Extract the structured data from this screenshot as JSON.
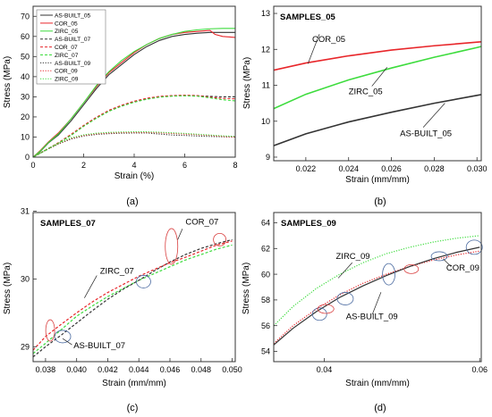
{
  "colors": {
    "as_built": "#333333",
    "cor": "#e8262a",
    "zirc": "#3ddc3d",
    "ellipse_black": "#4a6aa0",
    "ellipse_red": "#d94040"
  },
  "chart_data": [
    {
      "panel": "a",
      "type": "line",
      "caption": "(a)",
      "xlabel": "Strain (%)",
      "ylabel": "Stress (MPa)",
      "xlim": [
        0,
        8
      ],
      "ylim": [
        0,
        75
      ],
      "xticks": [
        0,
        2,
        4,
        6,
        8
      ],
      "yticks": [
        0,
        10,
        20,
        30,
        40,
        50,
        60,
        70
      ],
      "legend_position": "top-left",
      "series": [
        {
          "name": "AS-BUILT_05",
          "color": "#333333",
          "dash": "solid",
          "x": [
            0,
            0.3,
            0.6,
            1,
            1.5,
            2,
            2.5,
            3,
            3.5,
            4,
            4.5,
            5,
            5.5,
            6,
            6.5,
            7,
            7.5,
            8
          ],
          "y": [
            0,
            3,
            7,
            11,
            18,
            26,
            34,
            41,
            46,
            51,
            55,
            58,
            60,
            61,
            61.6,
            62,
            62,
            62
          ]
        },
        {
          "name": "COR_05",
          "color": "#e8262a",
          "dash": "solid",
          "x": [
            0,
            0.3,
            0.6,
            1,
            1.5,
            2,
            2.5,
            3,
            3.5,
            4,
            4.5,
            5,
            5.5,
            6,
            6.5,
            7,
            7.2,
            7.5,
            8
          ],
          "y": [
            0,
            3.5,
            7.5,
            12,
            19,
            27,
            35,
            42,
            47,
            52,
            56,
            59,
            61,
            62,
            62.5,
            63,
            61,
            60,
            59.5
          ]
        },
        {
          "name": "ZIRC_05",
          "color": "#3ddc3d",
          "dash": "solid",
          "x": [
            0,
            0.3,
            0.6,
            1,
            1.5,
            2,
            2.5,
            3,
            3.5,
            4,
            4.5,
            5,
            5.5,
            6,
            6.5,
            7,
            7.5,
            8
          ],
          "y": [
            0,
            3.2,
            7.2,
            11.5,
            19,
            27,
            35.5,
            42.5,
            48,
            52.5,
            56,
            59,
            61,
            62.5,
            63.3,
            63.8,
            64,
            64
          ]
        },
        {
          "name": "AS-BUILT_07",
          "color": "#333333",
          "dash": "dash",
          "x": [
            0,
            0.5,
            1,
            1.5,
            2,
            2.5,
            3,
            3.5,
            4,
            4.5,
            5,
            5.5,
            6,
            6.5,
            7,
            7.5,
            8
          ],
          "y": [
            0,
            3.5,
            7,
            11,
            15.5,
            19.5,
            23,
            25.5,
            27.5,
            29,
            30,
            30.4,
            30.6,
            30.5,
            30.2,
            30,
            30
          ]
        },
        {
          "name": "COR_07",
          "color": "#e8262a",
          "dash": "dash",
          "x": [
            0,
            0.5,
            1,
            1.5,
            2,
            2.5,
            3,
            3.5,
            4,
            4.5,
            5,
            5.5,
            6,
            6.5,
            7,
            7.5,
            8
          ],
          "y": [
            0,
            3.6,
            7.2,
            11.3,
            15.8,
            19.8,
            23.3,
            25.8,
            27.8,
            29.3,
            30.2,
            30.6,
            30.8,
            30.6,
            29.8,
            29.2,
            29
          ]
        },
        {
          "name": "ZIRC_07",
          "color": "#3ddc3d",
          "dash": "dash",
          "x": [
            0,
            0.5,
            1,
            1.5,
            2,
            2.5,
            3,
            3.5,
            4,
            4.5,
            5,
            5.5,
            6,
            6.5,
            7,
            7.5,
            8
          ],
          "y": [
            0,
            3.4,
            6.9,
            10.8,
            15.3,
            19.3,
            22.8,
            25.3,
            27.3,
            28.8,
            29.8,
            30.3,
            30.5,
            30.3,
            29.5,
            28.5,
            28
          ]
        },
        {
          "name": "AS-BUILT_09",
          "color": "#333333",
          "dash": "dot",
          "x": [
            0,
            0.5,
            1,
            1.5,
            2,
            2.5,
            3,
            3.5,
            4,
            4.5,
            5,
            5.5,
            6,
            6.5,
            7,
            7.5,
            8
          ],
          "y": [
            0,
            3.5,
            6.5,
            9,
            10.5,
            11.3,
            11.7,
            11.9,
            12,
            12,
            11.5,
            11,
            10.8,
            10.5,
            10.3,
            10.1,
            10
          ]
        },
        {
          "name": "COR_09",
          "color": "#e8262a",
          "dash": "dot",
          "x": [
            0,
            0.5,
            1,
            1.5,
            2,
            2.5,
            3,
            3.5,
            4,
            4.5,
            5,
            5.5,
            6,
            6.5,
            7,
            7.5,
            8
          ],
          "y": [
            0,
            3.6,
            6.7,
            9.3,
            10.8,
            11.6,
            12,
            12.2,
            12.3,
            12.3,
            12.1,
            11.8,
            11.5,
            11.2,
            10.8,
            10.3,
            10
          ]
        },
        {
          "name": "ZIRC_09",
          "color": "#3ddc3d",
          "dash": "dot",
          "x": [
            0,
            0.5,
            1,
            1.5,
            2,
            2.5,
            3,
            3.5,
            4,
            4.5,
            5,
            5.5,
            6,
            6.5,
            7,
            7.5,
            8
          ],
          "y": [
            0,
            3.7,
            6.9,
            9.6,
            11.1,
            11.9,
            12.3,
            12.5,
            12.6,
            12.6,
            12.4,
            12.1,
            11.8,
            11.4,
            11,
            10.6,
            10.3
          ]
        }
      ]
    },
    {
      "panel": "b",
      "type": "line",
      "title": "SAMPLES_05",
      "caption": "(b)",
      "xlabel": "Strain (mm/mm)",
      "ylabel": "Stress (MPa)",
      "xlim": [
        0.0205,
        0.0302
      ],
      "ylim": [
        8.9,
        13.2
      ],
      "xticks": [
        0.022,
        0.024,
        0.026,
        0.028,
        0.03
      ],
      "yticks": [
        9,
        10,
        11,
        12,
        13
      ],
      "series": [
        {
          "name": "COR_05",
          "color": "#e8262a",
          "dash": "solid",
          "x": [
            0.0205,
            0.022,
            0.024,
            0.026,
            0.028,
            0.03,
            0.0302
          ],
          "y": [
            11.42,
            11.62,
            11.82,
            11.98,
            12.1,
            12.2,
            12.21
          ]
        },
        {
          "name": "ZIRC_05",
          "color": "#3ddc3d",
          "dash": "solid",
          "x": [
            0.0205,
            0.022,
            0.024,
            0.026,
            0.028,
            0.03,
            0.0302
          ],
          "y": [
            10.35,
            10.75,
            11.15,
            11.48,
            11.78,
            12.05,
            12.08
          ]
        },
        {
          "name": "AS-BUILT_05",
          "color": "#333333",
          "dash": "solid",
          "x": [
            0.0205,
            0.022,
            0.024,
            0.026,
            0.028,
            0.03,
            0.0302
          ],
          "y": [
            9.32,
            9.65,
            9.98,
            10.25,
            10.5,
            10.72,
            10.74
          ]
        }
      ],
      "annotations": [
        {
          "text": "COR_05",
          "x": 0.0223,
          "y": 12.2,
          "ax": 0.0221,
          "ay": 11.6
        },
        {
          "text": "ZIRC_05",
          "x": 0.024,
          "y": 10.75,
          "ax": 0.0258,
          "ay": 11.5
        },
        {
          "text": "AS-BUILT_05",
          "x": 0.0264,
          "y": 9.58,
          "ax": 0.0285,
          "ay": 10.5
        }
      ]
    },
    {
      "panel": "c",
      "type": "line",
      "title": "SAMPLES_07",
      "caption": "(c)",
      "xlabel": "Strain (mm/mm)",
      "ylabel": "Stress (MPa)",
      "xlim": [
        0.0372,
        0.0502
      ],
      "ylim": [
        28.78,
        30.98
      ],
      "xticks": [
        0.038,
        0.04,
        0.042,
        0.044,
        0.046,
        0.048,
        0.05
      ],
      "yticks": [
        29,
        30,
        31
      ],
      "series": [
        {
          "name": "ZIRC_07",
          "color": "#3ddc3d",
          "dash": "dash",
          "x": [
            0.0372,
            0.038,
            0.039,
            0.04,
            0.041,
            0.042,
            0.043,
            0.044,
            0.045,
            0.046,
            0.047,
            0.048,
            0.049,
            0.05
          ],
          "y": [
            28.9,
            29.05,
            29.25,
            29.45,
            29.6,
            29.74,
            29.86,
            29.98,
            30.08,
            30.18,
            30.28,
            30.36,
            30.44,
            30.5
          ]
        },
        {
          "name": "AS-BUILT_07",
          "color": "#333333",
          "dash": "dash",
          "x": [
            0.0372,
            0.038,
            0.039,
            0.04,
            0.041,
            0.042,
            0.043,
            0.044,
            0.045,
            0.046,
            0.047,
            0.048,
            0.049,
            0.05
          ],
          "y": [
            28.85,
            29.0,
            29.17,
            29.35,
            29.53,
            29.7,
            29.85,
            29.98,
            30.12,
            30.25,
            30.36,
            30.45,
            30.52,
            30.58
          ]
        },
        {
          "name": "COR_07",
          "color": "#e8262a",
          "dash": "dash",
          "x": [
            0.0372,
            0.038,
            0.039,
            0.04,
            0.041,
            0.042,
            0.043,
            0.044,
            0.045,
            0.046,
            0.047,
            0.048,
            0.049,
            0.05
          ],
          "y": [
            28.95,
            29.15,
            29.33,
            29.5,
            29.66,
            29.8,
            29.92,
            30.04,
            30.14,
            30.24,
            30.32,
            30.41,
            30.5,
            30.56
          ]
        }
      ],
      "annotations": [
        {
          "text": "COR_07",
          "x": 0.047,
          "y": 30.8
        },
        {
          "text": "ZIRC_07",
          "x": 0.0415,
          "y": 30.08
        },
        {
          "text": "AS-BUILT_07",
          "x": 0.0398,
          "y": 28.98
        }
      ]
    },
    {
      "panel": "d",
      "type": "line",
      "title": "SAMPLES_09",
      "caption": "(d)",
      "xlabel": "Strain (mm/mm)",
      "ylabel": "Stress (MPa)",
      "xlim": [
        0.0335,
        0.0602
      ],
      "ylim": [
        53.2,
        64.8
      ],
      "xticks": [
        0.04,
        0.06
      ],
      "yticks": [
        54,
        56,
        58,
        60,
        62,
        64
      ],
      "series": [
        {
          "name": "ZIRC_09",
          "color": "#3ddc3d",
          "dash": "dot",
          "x": [
            0.0335,
            0.036,
            0.039,
            0.042,
            0.045,
            0.048,
            0.051,
            0.054,
            0.057,
            0.06
          ],
          "y": [
            56.0,
            57.5,
            58.9,
            60.0,
            60.9,
            61.6,
            62.1,
            62.5,
            62.8,
            63.0
          ]
        },
        {
          "name": "COR_09",
          "color": "#e8262a",
          "dash": "dot",
          "x": [
            0.0335,
            0.036,
            0.039,
            0.042,
            0.045,
            0.048,
            0.051,
            0.054,
            0.057,
            0.06
          ],
          "y": [
            54.6,
            56.0,
            57.3,
            58.4,
            59.3,
            60.0,
            60.6,
            61.1,
            61.5,
            61.8
          ]
        },
        {
          "name": "AS-BUILT_09",
          "color": "#333333",
          "dash": "solid",
          "x": [
            0.0335,
            0.036,
            0.039,
            0.042,
            0.045,
            0.048,
            0.051,
            0.054,
            0.057,
            0.06
          ],
          "y": [
            54.5,
            55.8,
            57.1,
            58.2,
            59.1,
            59.9,
            60.6,
            61.2,
            61.7,
            62.1
          ]
        }
      ],
      "annotations": [
        {
          "text": "ZIRC_09",
          "x": 0.0415,
          "y": 61.2
        },
        {
          "text": "COR_09",
          "x": 0.0557,
          "y": 60.3
        },
        {
          "text": "AS-BUILT_09",
          "x": 0.0428,
          "y": 56.5
        }
      ]
    }
  ]
}
